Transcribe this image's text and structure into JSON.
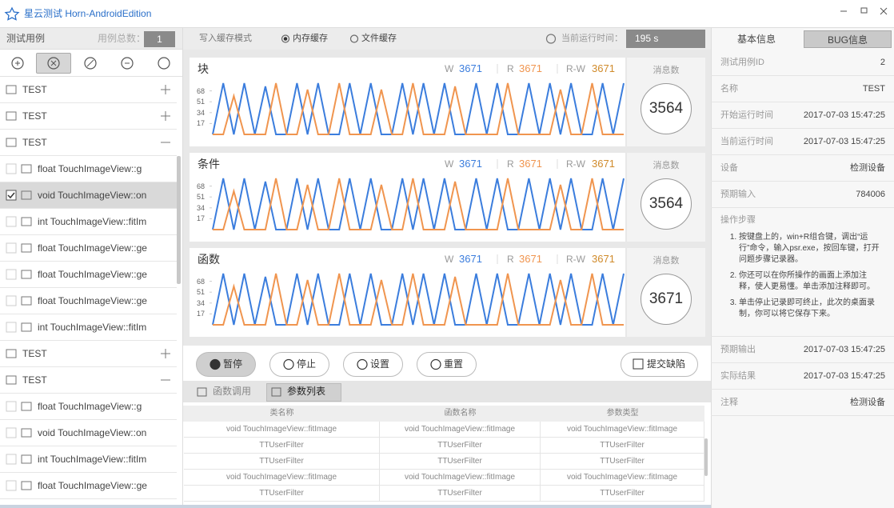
{
  "app_title": "星云测试 Horn-AndroidEdition",
  "sidebar": {
    "title": "测试用例",
    "count_label": "用例总数：",
    "count": 1,
    "items": [
      {
        "label": "TEST",
        "kind": "group",
        "expanded": false
      },
      {
        "label": "TEST",
        "kind": "group",
        "expanded": false
      },
      {
        "label": "TEST",
        "kind": "group",
        "expanded": true
      },
      {
        "label": "float TouchImageView::g",
        "kind": "item",
        "checked": false
      },
      {
        "label": "void TouchImageView::on",
        "kind": "item",
        "checked": true,
        "selected": true
      },
      {
        "label": "int TouchImageView::fitIm",
        "kind": "item",
        "checked": false
      },
      {
        "label": "float TouchImageView::ge",
        "kind": "item",
        "checked": false
      },
      {
        "label": "float TouchImageView::ge",
        "kind": "item",
        "checked": false
      },
      {
        "label": "float TouchImageView::ge",
        "kind": "item",
        "checked": false
      },
      {
        "label": "int TouchImageView::fitIm",
        "kind": "item",
        "checked": false
      },
      {
        "label": "TEST",
        "kind": "group",
        "expanded": false
      },
      {
        "label": "TEST",
        "kind": "group",
        "expanded": true
      },
      {
        "label": "float TouchImageView::g",
        "kind": "item",
        "checked": false
      },
      {
        "label": "void TouchImageView::on",
        "kind": "item",
        "checked": false
      },
      {
        "label": "int TouchImageView::fitIm",
        "kind": "item",
        "checked": false
      },
      {
        "label": "float TouchImageView::ge",
        "kind": "item",
        "checked": false
      }
    ]
  },
  "mode_bar": {
    "label": "写入缓存模式",
    "options": [
      "内存缓存",
      "文件缓存"
    ],
    "selected": 0,
    "time_label": "当前运行时间：",
    "time_value": "195 s"
  },
  "chart_data": [
    {
      "type": "line",
      "title": "块",
      "rw_label": "R-W",
      "rw_value": 3671,
      "count_label": "消息数",
      "count": 3564,
      "ylim": [
        0,
        85
      ],
      "yticks": [
        17,
        34,
        51,
        68
      ],
      "series": [
        {
          "name": "W",
          "total": 3671,
          "color": "#3b7ddd",
          "values": [
            0,
            80,
            0,
            80,
            0,
            75,
            0,
            0,
            80,
            0,
            80,
            0,
            0,
            80,
            0,
            80,
            0,
            0,
            80,
            0,
            80,
            0,
            80,
            0,
            0,
            80,
            0,
            80,
            0,
            0,
            80,
            0,
            80,
            0,
            80,
            0,
            0,
            80,
            0,
            80
          ]
        },
        {
          "name": "R",
          "total": 3671,
          "color": "#f0954f",
          "values": [
            0,
            0,
            60,
            0,
            0,
            0,
            80,
            0,
            0,
            70,
            0,
            0,
            80,
            0,
            0,
            0,
            70,
            0,
            0,
            80,
            0,
            0,
            0,
            75,
            0,
            0,
            0,
            0,
            80,
            0,
            0,
            0,
            0,
            70,
            0,
            0,
            80,
            0,
            0,
            0
          ]
        }
      ]
    },
    {
      "type": "line",
      "title": "条件",
      "rw_label": "R-W",
      "rw_value": 3671,
      "count_label": "消息数",
      "count": 3564,
      "ylim": [
        0,
        85
      ],
      "yticks": [
        17,
        34,
        51,
        68
      ],
      "series": [
        {
          "name": "W",
          "total": 3671,
          "color": "#3b7ddd",
          "values": [
            0,
            80,
            0,
            80,
            0,
            75,
            0,
            0,
            80,
            0,
            80,
            0,
            0,
            80,
            0,
            80,
            0,
            0,
            80,
            0,
            80,
            0,
            80,
            0,
            0,
            80,
            0,
            80,
            0,
            0,
            80,
            0,
            80,
            0,
            80,
            0,
            0,
            80,
            0,
            80
          ]
        },
        {
          "name": "R",
          "total": 3671,
          "color": "#f0954f",
          "values": [
            0,
            0,
            60,
            0,
            0,
            0,
            80,
            0,
            0,
            70,
            0,
            0,
            80,
            0,
            0,
            0,
            70,
            0,
            0,
            80,
            0,
            0,
            0,
            75,
            0,
            0,
            0,
            0,
            80,
            0,
            0,
            0,
            0,
            70,
            0,
            0,
            80,
            0,
            0,
            0
          ]
        }
      ]
    },
    {
      "type": "line",
      "title": "函数",
      "rw_label": "R-W",
      "rw_value": 3671,
      "count_label": "消息数",
      "count": 3671,
      "ylim": [
        0,
        85
      ],
      "yticks": [
        17,
        34,
        51,
        68
      ],
      "series": [
        {
          "name": "W",
          "total": 3671,
          "color": "#3b7ddd",
          "values": [
            0,
            80,
            0,
            80,
            0,
            75,
            0,
            0,
            80,
            0,
            80,
            0,
            0,
            80,
            0,
            80,
            0,
            0,
            80,
            0,
            80,
            0,
            80,
            0,
            0,
            80,
            0,
            80,
            0,
            0,
            80,
            0,
            80,
            0,
            80,
            0,
            0,
            80,
            0,
            80
          ]
        },
        {
          "name": "R",
          "total": 3671,
          "color": "#f0954f",
          "values": [
            0,
            0,
            60,
            0,
            0,
            0,
            80,
            0,
            0,
            70,
            0,
            0,
            80,
            0,
            0,
            0,
            70,
            0,
            0,
            80,
            0,
            0,
            0,
            75,
            0,
            0,
            0,
            0,
            80,
            0,
            0,
            0,
            0,
            70,
            0,
            0,
            80,
            0,
            0,
            0
          ]
        }
      ]
    }
  ],
  "controls": [
    "暂停",
    "停止",
    "设置",
    "重置"
  ],
  "submit": "提交缺陷",
  "tabs": [
    "函数调用",
    "参数列表"
  ],
  "active_tab": 1,
  "table": {
    "header": [
      "类名称",
      "函数名称",
      "参数类型"
    ],
    "rows": [
      [
        "void TouchImageView::fitImage",
        "void TouchImageView::fitImage",
        "void TouchImageView::fitImage"
      ],
      [
        "TTUserFilter",
        "TTUserFilter",
        "TTUserFilter"
      ],
      [
        "TTUserFilter",
        "TTUserFilter",
        "TTUserFilter"
      ],
      [
        "void TouchImageView::fitImage",
        "void TouchImageView::fitImage",
        "void TouchImageView::fitImage"
      ],
      [
        "TTUserFilter",
        "TTUserFilter",
        "TTUserFilter"
      ]
    ]
  },
  "info_tabs": [
    "基本信息",
    "BUG信息"
  ],
  "info_active": 1,
  "info": [
    {
      "label": "测试用例ID",
      "value": 2
    },
    {
      "label": "名称",
      "value": "TEST"
    },
    {
      "label": "开始运行时间",
      "value": "2017-07-03  15:47:25"
    },
    {
      "label": "当前运行时间",
      "value": "2017-07-03  15:47:25"
    },
    {
      "label": "设备",
      "value": "检测设备"
    },
    {
      "label": "预期输入",
      "value": 784006
    }
  ],
  "steps_label": "操作步骤",
  "steps": [
    "按键盘上的，win+R组合键，调出“运行”命令，输入psr.exe，按回车键，打开问题步骤记录器。",
    "你还可以在你所操作的画面上添加注释，使人更易懂。单击添加注释即可。",
    "单击停止记录即可终止，此次的桌面录制，你可以将它保存下来。"
  ],
  "info2": [
    {
      "label": "预期输出",
      "value": "2017-07-03  15:47:25"
    },
    {
      "label": "实际结果",
      "value": "2017-07-03  15:47:25"
    },
    {
      "label": "注释",
      "value": "检测设备"
    }
  ]
}
